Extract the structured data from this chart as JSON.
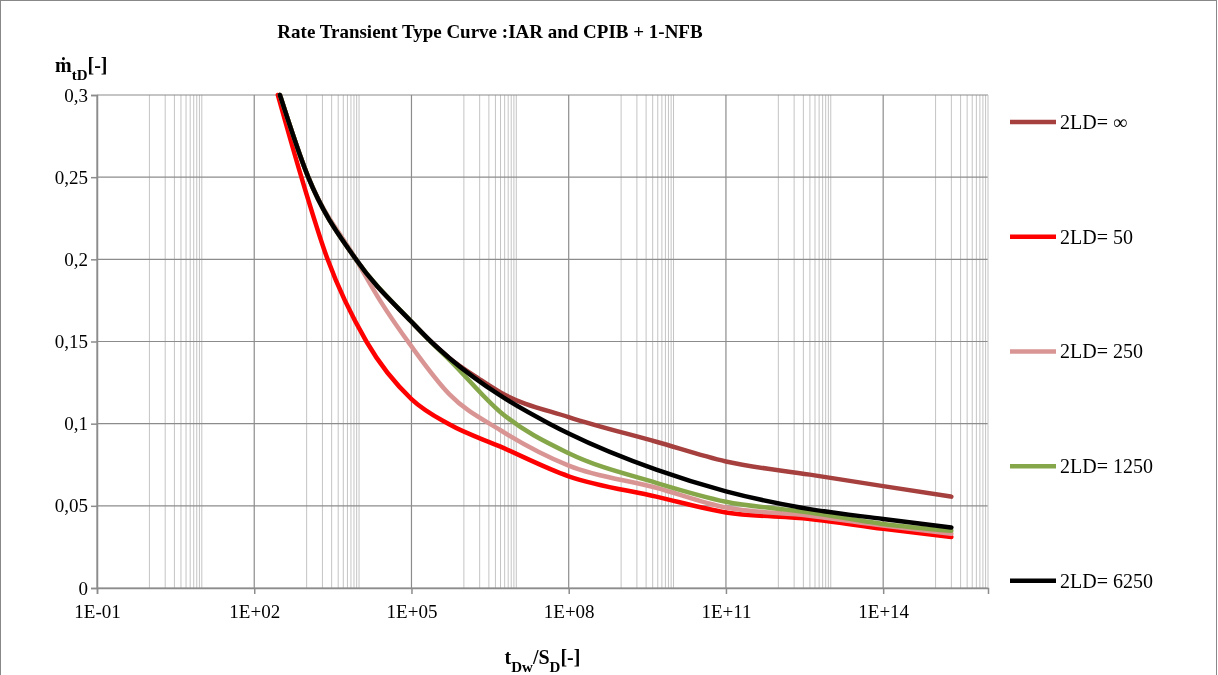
{
  "chart_data": {
    "type": "line",
    "title": "Rate Transient Type Curve :IAR and CPIB + 1-NFB",
    "ylabel": "ṁ$_{tD}$[-]",
    "xlabel": "t$_{Dw}$/S$_{D}$[-]",
    "log": "x",
    "grid": true,
    "legend": "right",
    "line_style": "solid",
    "marker": "none",
    "xlim": [
      0.1,
      1e+16
    ],
    "xticks": [
      {
        "value": 0.1,
        "label": "1E-01"
      },
      {
        "value": 100,
        "label": "1E+02"
      },
      {
        "value": 100000.0,
        "label": "1E+05"
      },
      {
        "value": 100000000.0,
        "label": "1E+08"
      },
      {
        "value": 100000000000.0,
        "label": "1E+11"
      },
      {
        "value": 100000000000000.0,
        "label": "1E+14"
      }
    ],
    "ylim": [
      0,
      0.3
    ],
    "yticks": [
      0,
      {
        "value": 0.05,
        "label": "0,05"
      },
      {
        "value": 0.1,
        "label": "0,1"
      },
      {
        "value": 0.15,
        "label": "0,15"
      },
      {
        "value": 0.2,
        "label": "0,2"
      },
      {
        "value": 0.25,
        "label": "0,25"
      },
      {
        "value": 0.3,
        "label": "0,3"
      }
    ],
    "series": [
      {
        "name": "2LD= ∞",
        "color": "#a5403e",
        "x": [
          309,
          1072,
          8710,
          100000.0,
          234400,
          524800,
          2000000.0,
          5000000.0,
          100000000.0,
          4680000000.0,
          100000000000.0,
          3980000000000.0,
          100000000000000.0,
          2000000000000000.0
        ],
        "values": [
          0.3,
          0.25,
          0.2,
          0.162,
          0.15,
          0.14,
          0.127,
          0.119,
          0.104,
          0.089,
          0.077,
          0.069,
          0.062,
          0.0556
        ]
      },
      {
        "name": "2LD= 50",
        "color": "#ff0000",
        "x": [
          282,
          794,
          2512,
          13800,
          100000.0,
          524800,
          5000000.0,
          100000000.0,
          4680000000.0,
          100000000000.0,
          3980000000000.0,
          100000000000000.0,
          2000000000000000.0
        ],
        "values": [
          0.3,
          0.25,
          0.2,
          0.15,
          0.115,
          0.0996,
          0.086,
          0.068,
          0.0556,
          0.046,
          0.042,
          0.036,
          0.031
        ]
      },
      {
        "name": "2LD= 250",
        "color": "#d99594",
        "x": [
          309,
          1072,
          8710,
          25000,
          100000.0,
          524800,
          5000000.0,
          100000000.0,
          4680000000.0,
          100000000000.0,
          3980000000000.0,
          100000000000000.0,
          2000000000000000.0
        ],
        "values": [
          0.3,
          0.25,
          0.2,
          0.175,
          0.147,
          0.118,
          0.096,
          0.0745,
          0.061,
          0.049,
          0.044,
          0.038,
          0.033
        ]
      },
      {
        "name": "2LD= 1250",
        "color": "#86a64a",
        "x": [
          309,
          1072,
          8710,
          100000.0,
          199500,
          524800,
          5000000.0,
          100000000.0,
          4680000000.0,
          100000000000.0,
          3980000000000.0,
          100000000000000.0,
          2000000000000000.0
        ],
        "values": [
          0.3,
          0.25,
          0.2,
          0.162,
          0.152,
          0.139,
          0.107,
          0.082,
          0.064,
          0.0525,
          0.046,
          0.039,
          0.0348
        ]
      },
      {
        "name": "2LD= 6250",
        "color": "#000000",
        "x": [
          309,
          1072,
          8710,
          100000.0,
          234400,
          524800,
          5000000.0,
          42700000.0,
          100000000.0,
          4680000000.0,
          100000000000.0,
          3980000000000.0,
          100000000000000.0,
          2000000000000000.0
        ],
        "values": [
          0.3,
          0.25,
          0.2,
          0.162,
          0.15,
          0.14,
          0.117,
          0.1,
          0.094,
          0.072,
          0.0588,
          0.048,
          0.042,
          0.0368
        ]
      }
    ]
  }
}
